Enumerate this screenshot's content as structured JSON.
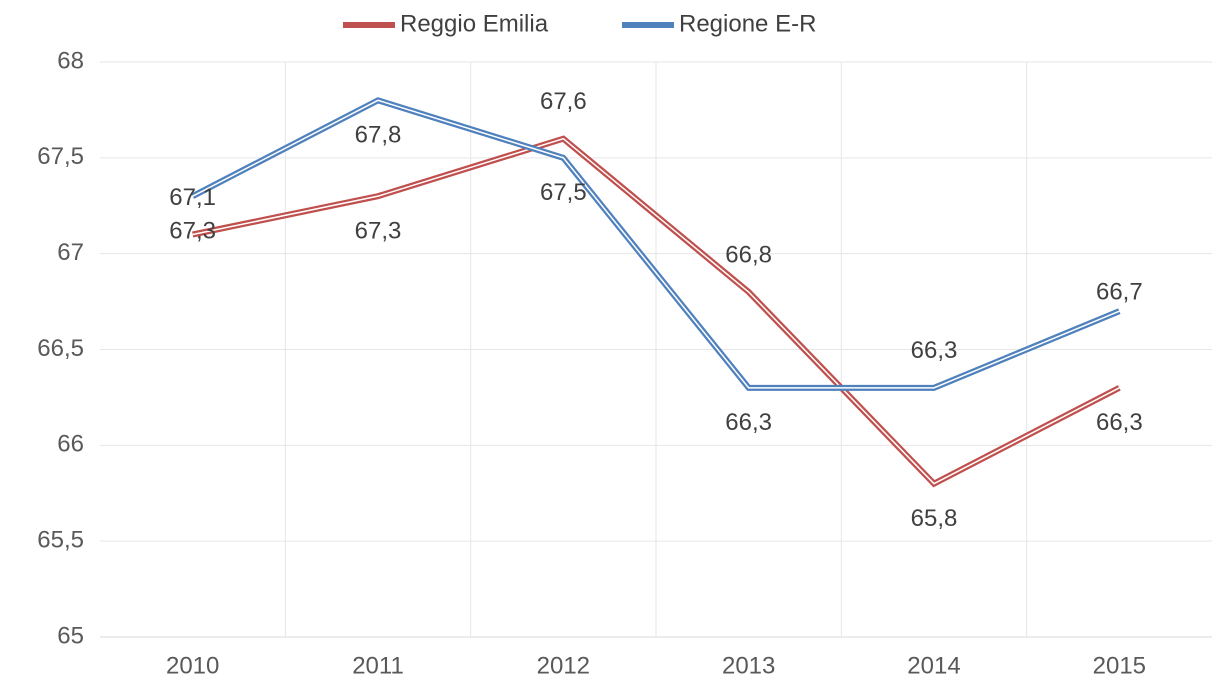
{
  "chart_data": {
    "type": "line",
    "categories": [
      "2010",
      "2011",
      "2012",
      "2013",
      "2014",
      "2015"
    ],
    "series": [
      {
        "name": "Reggio Emilia",
        "color": "#c0504d",
        "values": [
          67.1,
          67.3,
          67.6,
          66.8,
          65.8,
          66.3
        ],
        "value_labels": [
          "67,1",
          "67,3",
          "67,6",
          "66,8",
          "65,8",
          "66,3"
        ]
      },
      {
        "name": "Regione E-R",
        "color": "#4f81bd",
        "values": [
          67.3,
          67.8,
          67.5,
          66.3,
          66.3,
          66.7
        ],
        "value_labels": [
          "67,3",
          "67,8",
          "67,5",
          "66,3",
          "66,3",
          "66,7"
        ]
      }
    ],
    "ylim": [
      65,
      68
    ],
    "yticks": [
      65,
      {
        "value": 65.5,
        "label": "65,5"
      },
      66,
      {
        "value": 66.5,
        "label": "66,5"
      },
      67,
      {
        "value": 67.5,
        "label": "67,5"
      },
      68
    ],
    "grid": true,
    "legend": "top"
  }
}
